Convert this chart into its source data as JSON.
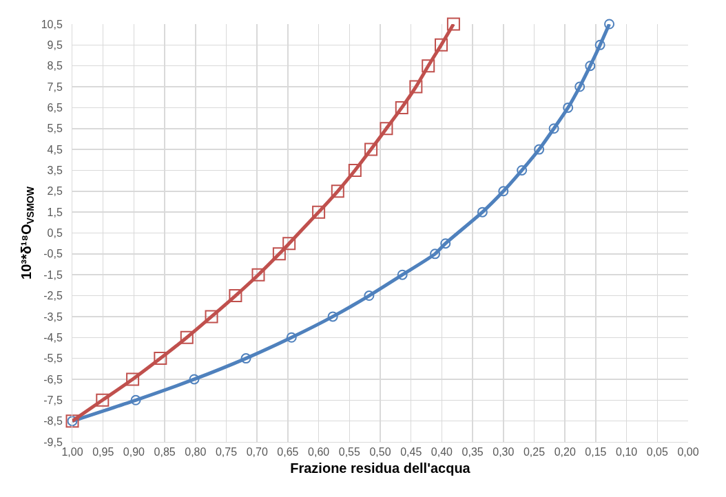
{
  "chart_data": {
    "type": "line",
    "xlabel": "Frazione residua dell'acqua",
    "ylabel": "10³*δ¹⁸O$_{VSMOW}$",
    "xlim": [
      1,
      0
    ],
    "xticks": [
      {
        "value": 1,
        "label": "1,00"
      },
      {
        "value": 0.95,
        "label": "0,95"
      },
      {
        "value": 0.9,
        "label": "0,90"
      },
      {
        "value": 0.85,
        "label": "0,85"
      },
      {
        "value": 0.8,
        "label": "0,80"
      },
      {
        "value": 0.75,
        "label": "0,75"
      },
      {
        "value": 0.7,
        "label": "0,70"
      },
      {
        "value": 0.65,
        "label": "0,65"
      },
      {
        "value": 0.6,
        "label": "0,60"
      },
      {
        "value": 0.55,
        "label": "0,55"
      },
      {
        "value": 0.5,
        "label": "0,50"
      },
      {
        "value": 0.45,
        "label": "0,45"
      },
      {
        "value": 0.4,
        "label": "0,40"
      },
      {
        "value": 0.35,
        "label": "0,35"
      },
      {
        "value": 0.3,
        "label": "0,30"
      },
      {
        "value": 0.25,
        "label": "0,25"
      },
      {
        "value": 0.2,
        "label": "0,20"
      },
      {
        "value": 0.15,
        "label": "0,15"
      },
      {
        "value": 0.1,
        "label": "0,10"
      },
      {
        "value": 0.05,
        "label": "0,05"
      },
      {
        "value": 0,
        "label": "0,00"
      }
    ],
    "ylim": [
      -9.5,
      10.5
    ],
    "yticks": [
      {
        "value": -9.5,
        "label": "-9,5"
      },
      {
        "value": -8.5,
        "label": "-8,5"
      },
      {
        "value": -7.5,
        "label": "-7,5"
      },
      {
        "value": -6.5,
        "label": "-6,5"
      },
      {
        "value": -5.5,
        "label": "-5,5"
      },
      {
        "value": -4.5,
        "label": "-4,5"
      },
      {
        "value": -3.5,
        "label": "-3,5"
      },
      {
        "value": -2.5,
        "label": "-2,5"
      },
      {
        "value": -1.5,
        "label": "-1,5"
      },
      {
        "value": -0.5,
        "label": "-0,5"
      },
      {
        "value": 0.5,
        "label": "0,5"
      },
      {
        "value": 1.5,
        "label": "1,5"
      },
      {
        "value": 2.5,
        "label": "2,5"
      },
      {
        "value": 3.5,
        "label": "3,5"
      },
      {
        "value": 4.5,
        "label": "4,5"
      },
      {
        "value": 5.5,
        "label": "5,5"
      },
      {
        "value": 6.5,
        "label": "6,5"
      },
      {
        "value": 7.5,
        "label": "7,5"
      },
      {
        "value": 8.5,
        "label": "8,5"
      },
      {
        "value": 9.5,
        "label": "9,5"
      },
      {
        "value": 10.5,
        "label": "10,5"
      }
    ],
    "grid": true,
    "series": [
      {
        "color": "#4f81bd",
        "marker": "circle",
        "x": [
          1.0,
          0.897,
          0.802,
          0.718,
          0.644,
          0.577,
          0.518,
          0.464,
          0.411,
          0.394,
          0.334,
          0.3,
          0.27,
          0.242,
          0.218,
          0.195,
          0.176,
          0.159,
          0.143,
          0.128
        ],
        "values": [
          -8.5,
          -7.5,
          -6.5,
          -5.5,
          -4.5,
          -3.5,
          -2.5,
          -1.5,
          -0.5,
          0,
          1.5,
          2.5,
          3.5,
          4.5,
          5.5,
          6.5,
          7.5,
          8.5,
          9.5,
          10.5
        ]
      },
      {
        "color": "#c0504d",
        "marker": "square",
        "x": [
          1.0,
          0.951,
          0.902,
          0.857,
          0.814,
          0.774,
          0.735,
          0.698,
          0.664,
          0.648,
          0.6,
          0.569,
          0.541,
          0.515,
          0.49,
          0.465,
          0.442,
          0.422,
          0.401,
          0.381
        ],
        "values": [
          -8.5,
          -7.5,
          -6.5,
          -5.5,
          -4.5,
          -3.5,
          -2.5,
          -1.5,
          -0.5,
          0,
          1.5,
          2.5,
          3.5,
          4.5,
          5.5,
          6.5,
          7.5,
          8.5,
          9.5,
          10.5
        ]
      }
    ]
  }
}
